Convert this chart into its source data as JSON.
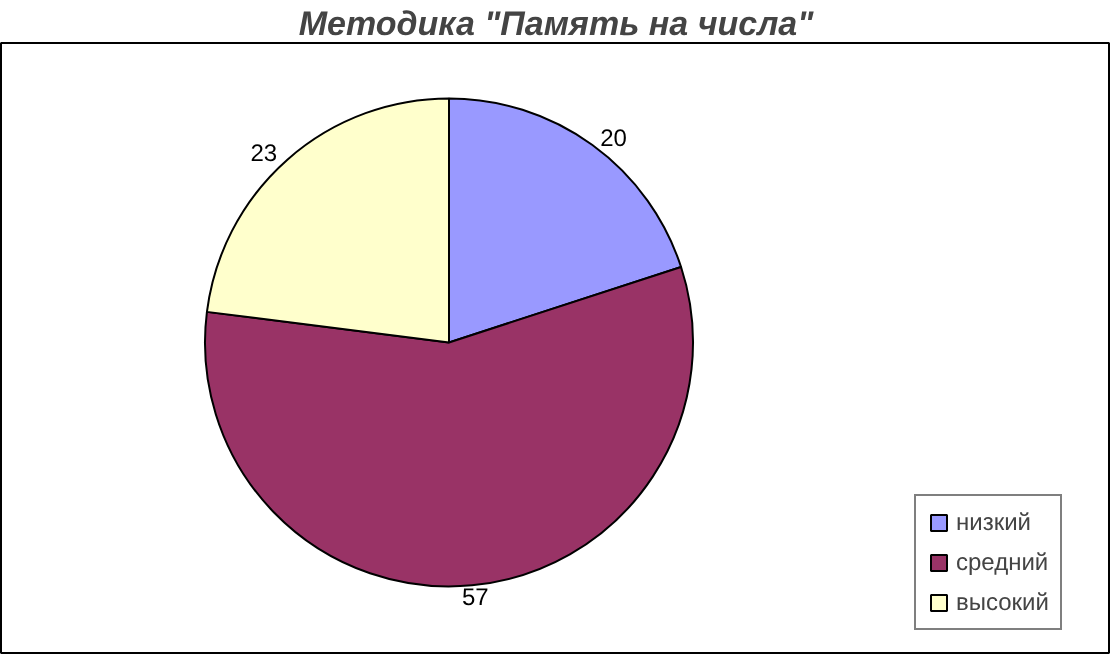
{
  "chart_data": {
    "type": "pie",
    "title": "Методика \"Память на числа\"",
    "categories": [
      "низкий",
      "средний",
      "высокий"
    ],
    "values": [
      20,
      57,
      23
    ],
    "colors": [
      "#9999ff",
      "#993366",
      "#ffffcc"
    ],
    "data_labels": true,
    "legend": "right"
  }
}
